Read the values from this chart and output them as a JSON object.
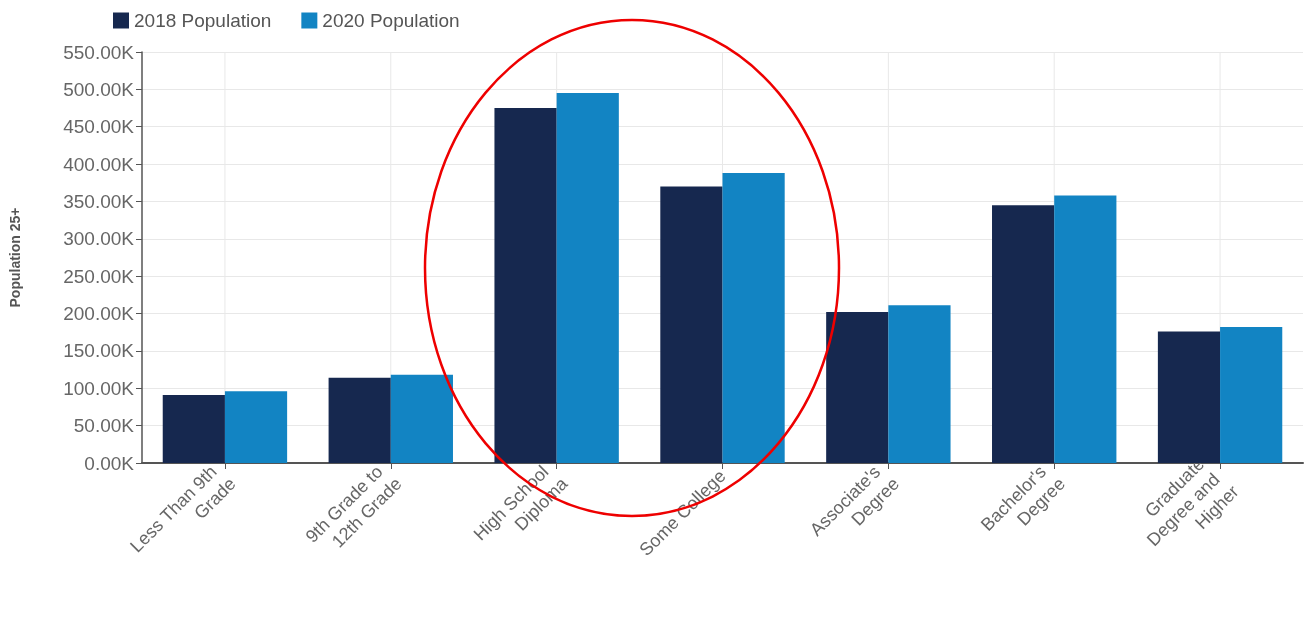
{
  "chart_data": {
    "type": "bar",
    "ylabel": "Population 25+",
    "categories": [
      "Less Than 9th Grade",
      "9th Grade to 12th Grade",
      "High School Diploma",
      "Some College",
      "Associate's Degree",
      "Bachelor's Degree",
      "Graduate Degree and Higher"
    ],
    "series": [
      {
        "name": "2018 Population",
        "color": "#16284f",
        "values": [
          91000,
          114000,
          475000,
          370000,
          202000,
          345000,
          176000
        ]
      },
      {
        "name": "2020 Population",
        "color": "#1284c3",
        "values": [
          96000,
          118000,
          495000,
          388000,
          211000,
          358000,
          182000
        ]
      }
    ],
    "ylim": [
      0,
      550000
    ],
    "yticks": [
      {
        "value": 0,
        "label": "0.00K"
      },
      {
        "value": 50000,
        "label": "50.00K"
      },
      {
        "value": 100000,
        "label": "100.00K"
      },
      {
        "value": 150000,
        "label": "150.00K"
      },
      {
        "value": 200000,
        "label": "200.00K"
      },
      {
        "value": 250000,
        "label": "250.00K"
      },
      {
        "value": 300000,
        "label": "300.00K"
      },
      {
        "value": 350000,
        "label": "350.00K"
      },
      {
        "value": 400000,
        "label": "400.00K"
      },
      {
        "value": 450000,
        "label": "450.00K"
      },
      {
        "value": 500000,
        "label": "500.00K"
      },
      {
        "value": 550000,
        "label": "550.00K"
      }
    ],
    "grid": true,
    "legend": "top left"
  }
}
